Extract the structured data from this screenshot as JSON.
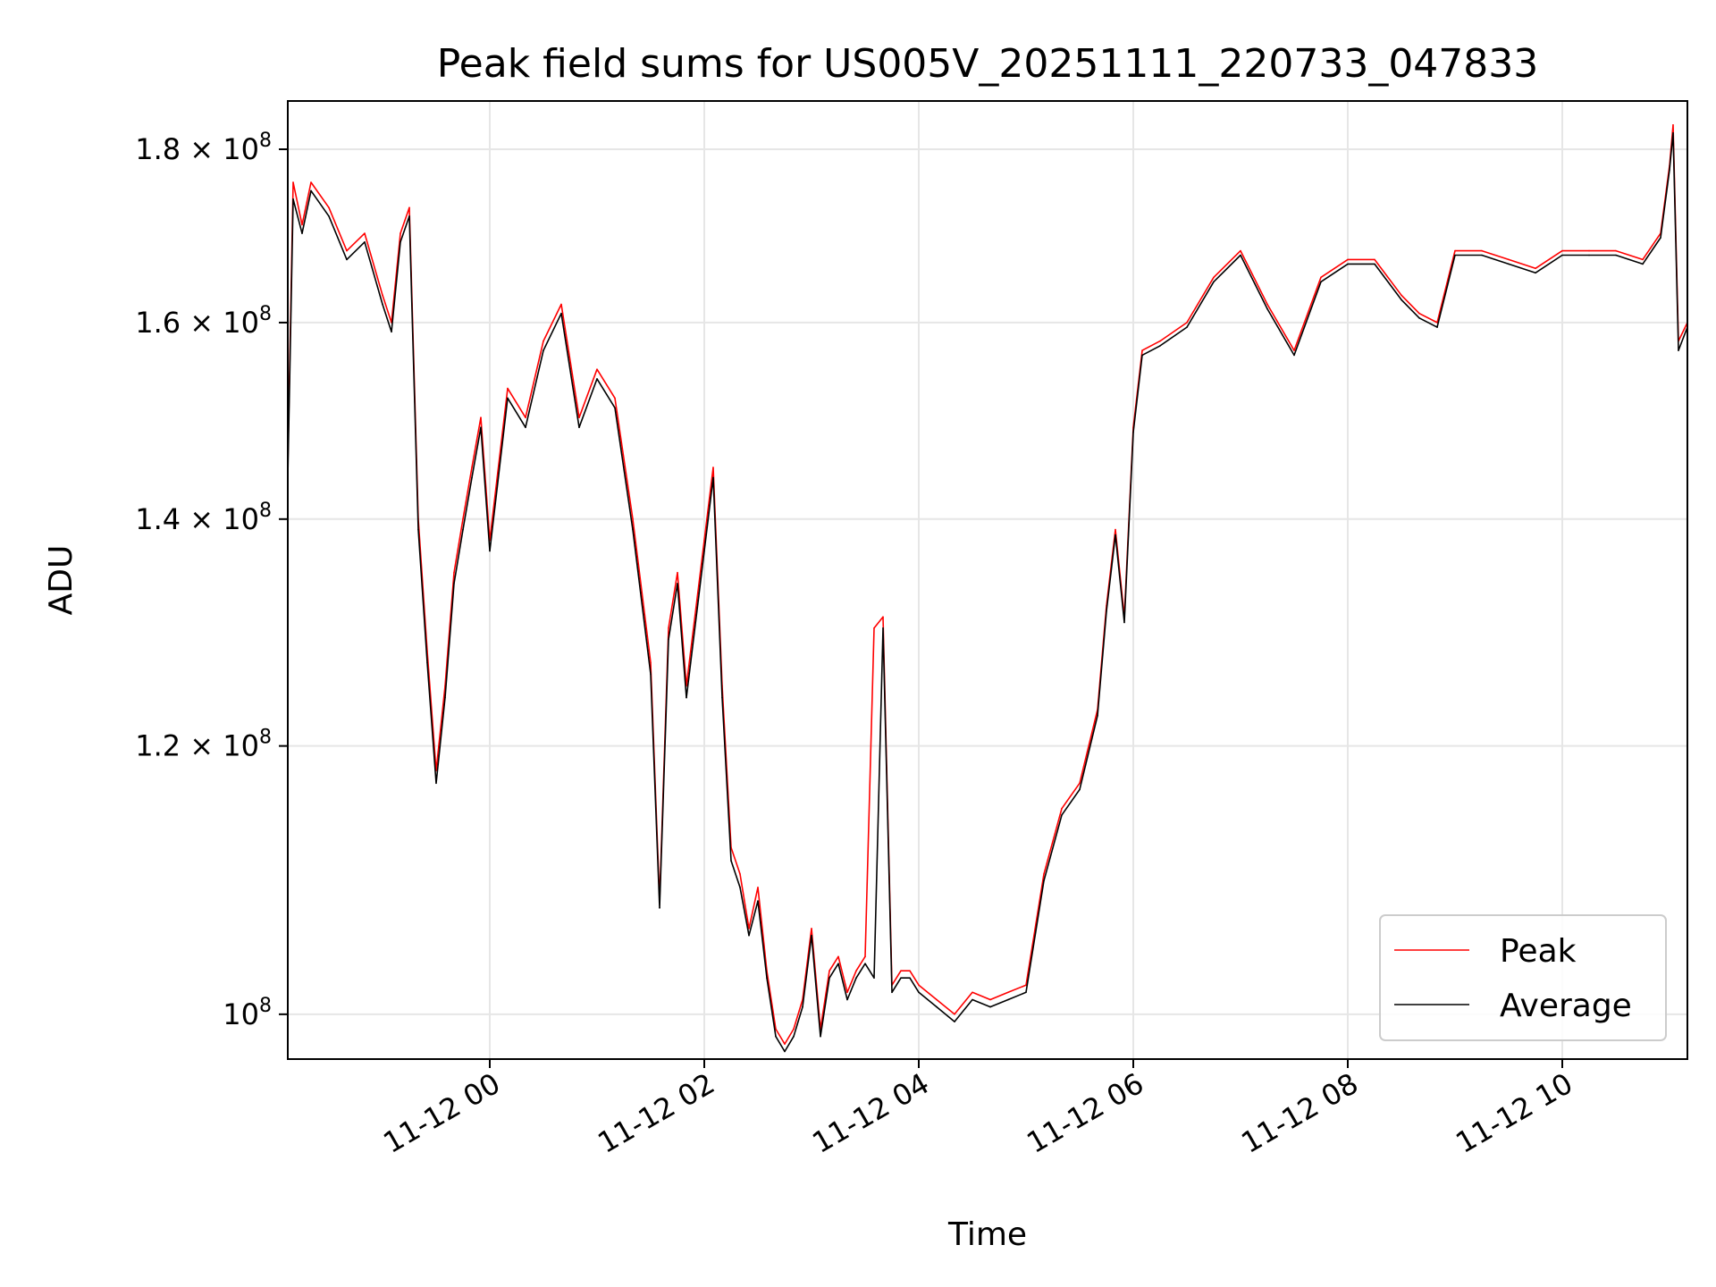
{
  "chart_data": {
    "type": "line",
    "title": "Peak field sums for US005V_20251111_220733_047833",
    "xlabel": "Time",
    "ylabel": "ADU",
    "yscale": "log",
    "grid": true,
    "legend_position": "lower-right",
    "xlim": [
      "2025-11-11 22:07",
      "2025-11-12 11:10"
    ],
    "ylim": [
      97000000,
      186000000
    ],
    "x_ticks": [
      {
        "value": "2025-11-12 00:00",
        "label": "11-12 00"
      },
      {
        "value": "2025-11-12 02:00",
        "label": "11-12 02"
      },
      {
        "value": "2025-11-12 04:00",
        "label": "11-12 04"
      },
      {
        "value": "2025-11-12 06:00",
        "label": "11-12 06"
      },
      {
        "value": "2025-11-12 08:00",
        "label": "11-12 08"
      },
      {
        "value": "2025-11-12 10:00",
        "label": "11-12 10"
      }
    ],
    "y_ticks": [
      {
        "value": 100000000,
        "mantissa": "",
        "exponent": "8",
        "label": "10^8"
      },
      {
        "value": 120000000,
        "mantissa": "1.2",
        "exponent": "8",
        "label": "1.2×10^8"
      },
      {
        "value": 140000000,
        "mantissa": "1.4",
        "exponent": "8",
        "label": "1.4×10^8"
      },
      {
        "value": 160000000,
        "mantissa": "1.6",
        "exponent": "8",
        "label": "1.6×10^8"
      },
      {
        "value": 180000000,
        "mantissa": "1.8",
        "exponent": "8",
        "label": "1.8×10^8"
      }
    ],
    "series": [
      {
        "name": "Peak",
        "color": "#ff0000",
        "x": [
          "2025-11-11 22:07",
          "2025-11-11 22:10",
          "2025-11-11 22:15",
          "2025-11-11 22:20",
          "2025-11-11 22:30",
          "2025-11-11 22:40",
          "2025-11-11 22:50",
          "2025-11-11 23:00",
          "2025-11-11 23:05",
          "2025-11-11 23:10",
          "2025-11-11 23:15",
          "2025-11-11 23:20",
          "2025-11-11 23:25",
          "2025-11-11 23:30",
          "2025-11-11 23:35",
          "2025-11-11 23:40",
          "2025-11-11 23:45",
          "2025-11-11 23:50",
          "2025-11-11 23:55",
          "2025-11-12 00:00",
          "2025-11-12 00:10",
          "2025-11-12 00:20",
          "2025-11-12 00:30",
          "2025-11-12 00:40",
          "2025-11-12 00:50",
          "2025-11-12 01:00",
          "2025-11-12 01:10",
          "2025-11-12 01:20",
          "2025-11-12 01:30",
          "2025-11-12 01:35",
          "2025-11-12 01:40",
          "2025-11-12 01:45",
          "2025-11-12 01:50",
          "2025-11-12 02:00",
          "2025-11-12 02:05",
          "2025-11-12 02:10",
          "2025-11-12 02:15",
          "2025-11-12 02:20",
          "2025-11-12 02:25",
          "2025-11-12 02:30",
          "2025-11-12 02:35",
          "2025-11-12 02:40",
          "2025-11-12 02:45",
          "2025-11-12 02:50",
          "2025-11-12 02:55",
          "2025-11-12 03:00",
          "2025-11-12 03:05",
          "2025-11-12 03:10",
          "2025-11-12 03:15",
          "2025-11-12 03:20",
          "2025-11-12 03:25",
          "2025-11-12 03:30",
          "2025-11-12 03:35",
          "2025-11-12 03:40",
          "2025-11-12 03:45",
          "2025-11-12 03:50",
          "2025-11-12 03:55",
          "2025-11-12 04:00",
          "2025-11-12 04:10",
          "2025-11-12 04:20",
          "2025-11-12 04:30",
          "2025-11-12 04:40",
          "2025-11-12 04:50",
          "2025-11-12 05:00",
          "2025-11-12 05:10",
          "2025-11-12 05:20",
          "2025-11-12 05:30",
          "2025-11-12 05:40",
          "2025-11-12 05:45",
          "2025-11-12 05:50",
          "2025-11-12 05:55",
          "2025-11-12 06:00",
          "2025-11-12 06:05",
          "2025-11-12 06:15",
          "2025-11-12 06:30",
          "2025-11-12 06:45",
          "2025-11-12 07:00",
          "2025-11-12 07:15",
          "2025-11-12 07:30",
          "2025-11-12 07:45",
          "2025-11-12 08:00",
          "2025-11-12 08:15",
          "2025-11-12 08:30",
          "2025-11-12 08:40",
          "2025-11-12 08:50",
          "2025-11-12 09:00",
          "2025-11-12 09:15",
          "2025-11-12 09:30",
          "2025-11-12 09:45",
          "2025-11-12 10:00",
          "2025-11-12 10:15",
          "2025-11-12 10:30",
          "2025-11-12 10:45",
          "2025-11-12 10:55",
          "2025-11-12 11:00",
          "2025-11-12 11:02",
          "2025-11-12 11:05",
          "2025-11-12 11:10"
        ],
        "values": [
          145000000,
          176000000,
          171000000,
          176000000,
          173000000,
          168000000,
          170000000,
          163000000,
          160000000,
          170000000,
          173000000,
          140000000,
          128000000,
          118000000,
          125000000,
          135000000,
          140000000,
          145000000,
          150000000,
          138000000,
          153000000,
          150000000,
          158000000,
          162000000,
          150000000,
          155000000,
          152000000,
          140000000,
          127000000,
          108000000,
          130000000,
          135000000,
          125000000,
          138000000,
          145000000,
          125000000,
          112000000,
          110000000,
          106000000,
          109000000,
          103000000,
          99000000,
          98000000,
          99000000,
          101000000,
          106000000,
          99000000,
          103000000,
          104000000,
          101500000,
          103000000,
          104000000,
          130000000,
          131000000,
          102000000,
          103000000,
          103000000,
          102000000,
          101000000,
          100000000,
          101500000,
          101000000,
          101500000,
          102000000,
          110000000,
          115000000,
          117000000,
          123000000,
          132000000,
          139000000,
          131000000,
          149000000,
          157000000,
          158000000,
          160000000,
          165000000,
          168000000,
          162000000,
          157000000,
          165000000,
          167000000,
          167000000,
          163000000,
          161000000,
          160000000,
          168000000,
          168000000,
          167000000,
          166000000,
          168000000,
          168000000,
          168000000,
          167000000,
          170000000,
          178000000,
          183000000,
          158000000,
          160000000
        ]
      },
      {
        "name": "Average",
        "color": "#000000",
        "x": [
          "2025-11-11 22:07",
          "2025-11-11 22:10",
          "2025-11-11 22:15",
          "2025-11-11 22:20",
          "2025-11-11 22:30",
          "2025-11-11 22:40",
          "2025-11-11 22:50",
          "2025-11-11 23:00",
          "2025-11-11 23:05",
          "2025-11-11 23:10",
          "2025-11-11 23:15",
          "2025-11-11 23:20",
          "2025-11-11 23:25",
          "2025-11-11 23:30",
          "2025-11-11 23:35",
          "2025-11-11 23:40",
          "2025-11-11 23:45",
          "2025-11-11 23:50",
          "2025-11-11 23:55",
          "2025-11-12 00:00",
          "2025-11-12 00:10",
          "2025-11-12 00:20",
          "2025-11-12 00:30",
          "2025-11-12 00:40",
          "2025-11-12 00:50",
          "2025-11-12 01:00",
          "2025-11-12 01:10",
          "2025-11-12 01:20",
          "2025-11-12 01:30",
          "2025-11-12 01:35",
          "2025-11-12 01:40",
          "2025-11-12 01:45",
          "2025-11-12 01:50",
          "2025-11-12 02:00",
          "2025-11-12 02:05",
          "2025-11-12 02:10",
          "2025-11-12 02:15",
          "2025-11-12 02:20",
          "2025-11-12 02:25",
          "2025-11-12 02:30",
          "2025-11-12 02:35",
          "2025-11-12 02:40",
          "2025-11-12 02:45",
          "2025-11-12 02:50",
          "2025-11-12 02:55",
          "2025-11-12 03:00",
          "2025-11-12 03:05",
          "2025-11-12 03:10",
          "2025-11-12 03:15",
          "2025-11-12 03:20",
          "2025-11-12 03:25",
          "2025-11-12 03:30",
          "2025-11-12 03:35",
          "2025-11-12 03:40",
          "2025-11-12 03:45",
          "2025-11-12 03:50",
          "2025-11-12 03:55",
          "2025-11-12 04:00",
          "2025-11-12 04:10",
          "2025-11-12 04:20",
          "2025-11-12 04:30",
          "2025-11-12 04:40",
          "2025-11-12 04:50",
          "2025-11-12 05:00",
          "2025-11-12 05:10",
          "2025-11-12 05:20",
          "2025-11-12 05:30",
          "2025-11-12 05:40",
          "2025-11-12 05:45",
          "2025-11-12 05:50",
          "2025-11-12 05:55",
          "2025-11-12 06:00",
          "2025-11-12 06:05",
          "2025-11-12 06:15",
          "2025-11-12 06:30",
          "2025-11-12 06:45",
          "2025-11-12 07:00",
          "2025-11-12 07:15",
          "2025-11-12 07:30",
          "2025-11-12 07:45",
          "2025-11-12 08:00",
          "2025-11-12 08:15",
          "2025-11-12 08:30",
          "2025-11-12 08:40",
          "2025-11-12 08:50",
          "2025-11-12 09:00",
          "2025-11-12 09:15",
          "2025-11-12 09:30",
          "2025-11-12 09:45",
          "2025-11-12 10:00",
          "2025-11-12 10:15",
          "2025-11-12 10:30",
          "2025-11-12 10:45",
          "2025-11-12 10:55",
          "2025-11-12 11:00",
          "2025-11-12 11:02",
          "2025-11-12 11:05",
          "2025-11-12 11:10"
        ],
        "values": [
          144000000,
          174000000,
          170000000,
          175000000,
          172000000,
          167000000,
          169000000,
          162000000,
          159000000,
          169000000,
          172000000,
          139000000,
          127000000,
          117000000,
          124000000,
          134000000,
          139000000,
          144000000,
          149000000,
          137000000,
          152000000,
          149000000,
          157000000,
          161000000,
          149000000,
          154000000,
          151000000,
          139000000,
          126000000,
          107500000,
          129000000,
          134000000,
          124000000,
          137000000,
          144000000,
          124000000,
          111000000,
          109000000,
          105500000,
          108000000,
          102500000,
          98500000,
          97500000,
          98500000,
          100500000,
          105500000,
          98500000,
          102500000,
          103500000,
          101000000,
          102500000,
          103500000,
          102500000,
          130000000,
          101500000,
          102500000,
          102500000,
          101500000,
          100500000,
          99500000,
          101000000,
          100500000,
          101000000,
          101500000,
          109500000,
          114500000,
          116500000,
          122500000,
          131500000,
          138500000,
          130500000,
          148500000,
          156500000,
          157500000,
          159500000,
          164500000,
          167500000,
          161500000,
          156500000,
          164500000,
          166500000,
          166500000,
          162500000,
          160500000,
          159500000,
          167500000,
          167500000,
          166500000,
          165500000,
          167500000,
          167500000,
          167500000,
          166500000,
          169500000,
          177500000,
          182000000,
          157000000,
          159500000
        ]
      }
    ]
  }
}
